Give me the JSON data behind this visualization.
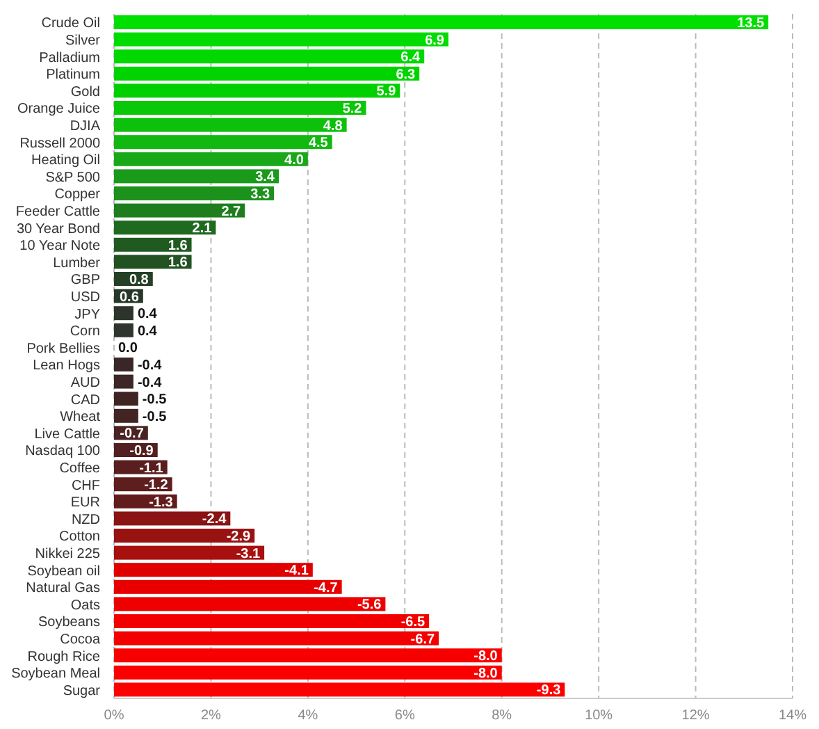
{
  "chart_data": {
    "type": "bar",
    "orientation": "horizontal",
    "categories": [
      "Crude Oil",
      "Silver",
      "Palladium",
      "Platinum",
      "Gold",
      "Orange Juice",
      "DJIA",
      "Russell 2000",
      "Heating Oil",
      "S&P 500",
      "Copper",
      "Feeder Cattle",
      "30 Year Bond",
      "10 Year Note",
      "Lumber",
      "GBP",
      "USD",
      "JPY",
      "Corn",
      "Pork Bellies",
      "Lean Hogs",
      "AUD",
      "CAD",
      "Wheat",
      "Live Cattle",
      "Nasdaq 100",
      "Coffee",
      "CHF",
      "EUR",
      "NZD",
      "Cotton",
      "Nikkei 225",
      "Soybean oil",
      "Natural Gas",
      "Oats",
      "Soybeans",
      "Cocoa",
      "Rough Rice",
      "Soybean Meal",
      "Sugar"
    ],
    "values": [
      13.5,
      6.9,
      6.4,
      6.3,
      5.9,
      5.2,
      4.8,
      4.5,
      4.0,
      3.4,
      3.3,
      2.7,
      2.1,
      1.6,
      1.6,
      0.8,
      0.6,
      0.4,
      0.4,
      0.0,
      -0.4,
      -0.4,
      -0.5,
      -0.5,
      -0.7,
      -0.9,
      -1.1,
      -1.2,
      -1.3,
      -2.4,
      -2.9,
      -3.1,
      -4.1,
      -4.7,
      -5.6,
      -6.5,
      -6.7,
      -8.0,
      -8.0,
      -9.3
    ],
    "base": [
      null,
      null,
      null,
      null,
      null,
      null,
      null,
      null,
      null,
      null,
      null,
      null,
      null,
      null,
      null,
      null,
      null,
      null,
      null,
      null,
      0.4,
      0.4,
      0.5,
      0.5,
      0.7,
      0.9,
      1.1,
      1.2,
      1.3,
      2.4,
      2.9,
      3.1,
      4.1,
      4.7,
      5.6,
      6.5,
      6.7,
      8.0,
      8.0,
      9.3
    ],
    "value_labels": [
      "13.5",
      "6.9",
      "6.4",
      "6.3",
      "5.9",
      "5.2",
      "4.8",
      "4.5",
      "4.0",
      "3.4",
      "3.3",
      "2.7",
      "2.1",
      "1.6",
      "1.6",
      "0.8",
      "0.6",
      "0.4",
      "0.4",
      "0.0",
      "-0.4",
      "-0.4",
      "-0.5",
      "-0.5",
      "-0.7",
      "-0.9",
      "-1.1",
      "-1.2",
      "-1.3",
      "-2.4",
      "-2.9",
      "-3.1",
      "-4.1",
      "-4.7",
      "-5.6",
      "-6.5",
      "-6.7",
      "-8.0",
      "-8.0",
      "-9.3"
    ],
    "colors": [
      "#00e000",
      "#00dc00",
      "#00d800",
      "#00d400",
      "#00d000",
      "#08c808",
      "#0cc00c",
      "#10b810",
      "#18a818",
      "#1a9a1a",
      "#1c921c",
      "#1e7e1e",
      "#206a20",
      "#205a20",
      "#225222",
      "#264026",
      "#283828",
      "#2c342c",
      "#2e342e",
      "#333333",
      "#3a2626",
      "#3c2626",
      "#402424",
      "#422424",
      "#4a2222",
      "#522020",
      "#5a1e1e",
      "#5e1e1e",
      "#621c1c",
      "#8a1414",
      "#981212",
      "#a81010",
      "#e00000",
      "#e80000",
      "#ee0000",
      "#f20000",
      "#f40000",
      "#f80000",
      "#fa0000",
      "#ff0000"
    ],
    "xlim": [
      0,
      14
    ],
    "xticks": [
      {
        "value": 0,
        "label": "0%"
      },
      {
        "value": 2,
        "label": "2%"
      },
      {
        "value": 4,
        "label": "4%"
      },
      {
        "value": 6,
        "label": "6%"
      },
      {
        "value": 8,
        "label": "8%"
      },
      {
        "value": 10,
        "label": "10%"
      },
      {
        "value": 12,
        "label": "12%"
      },
      {
        "value": 14,
        "label": "14%"
      }
    ],
    "grid": "x"
  }
}
